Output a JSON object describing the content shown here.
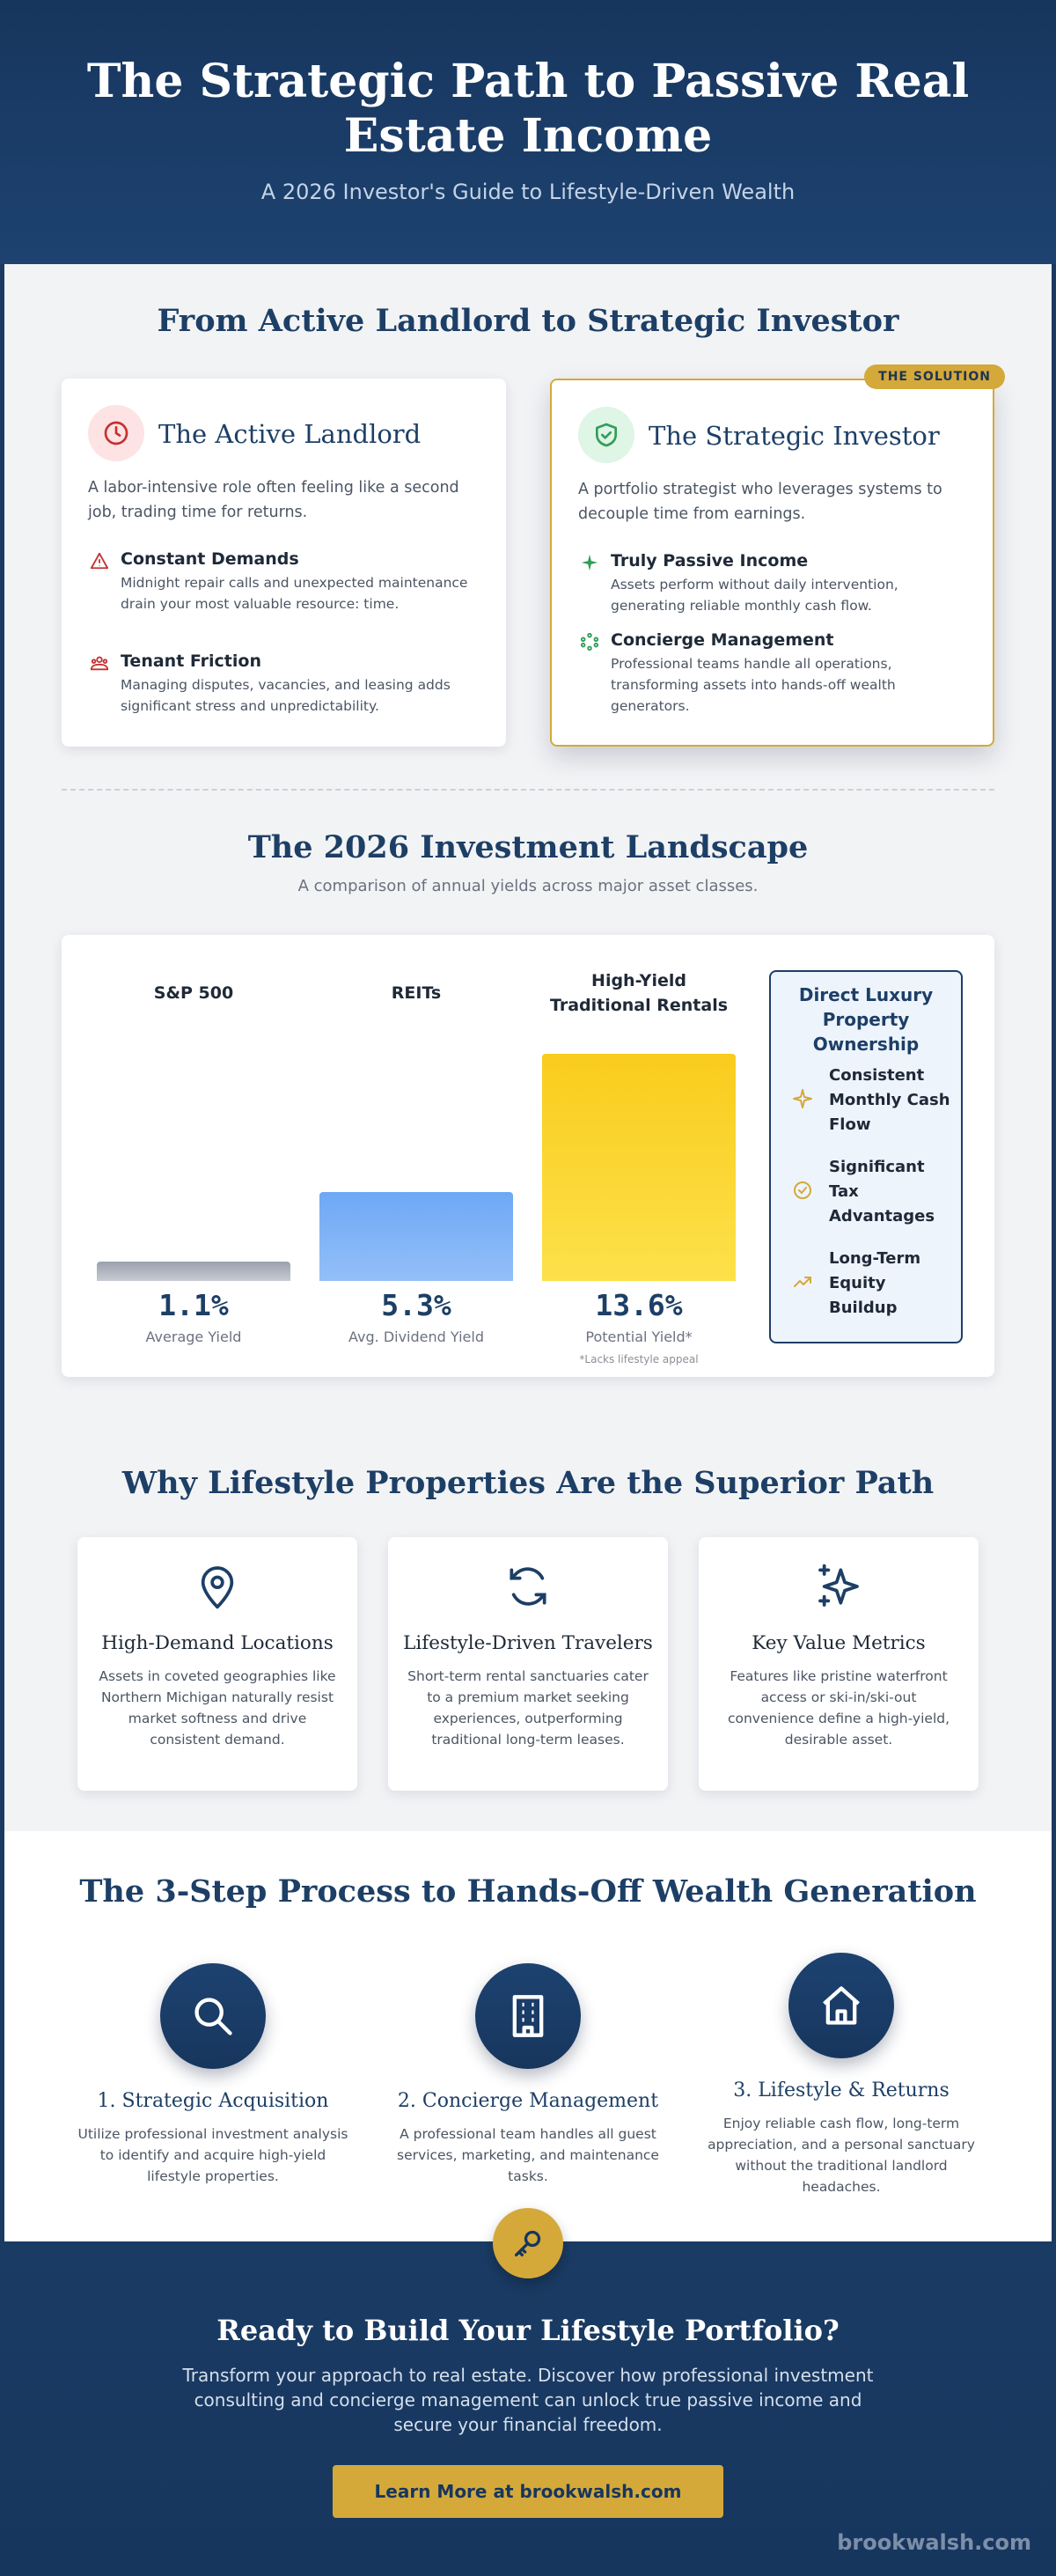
{
  "hero": {
    "title": "The Strategic Path to Passive Real Estate Income",
    "subtitle": "A 2026 Investor's Guide to Lifestyle-Driven Wealth"
  },
  "compare": {
    "title": "From Active Landlord to Strategic Investor",
    "active": {
      "icon": "clock-icon",
      "title": "The Active Landlord",
      "desc": "A labor-intensive role often feeling like a second job, trading time for returns.",
      "items": [
        {
          "icon": "warning-icon",
          "title": "Constant Demands",
          "desc": "Midnight repair calls and unexpected maintenance drain your most valuable resource: time."
        },
        {
          "icon": "group-icon",
          "title": "Tenant Friction",
          "desc": "Managing disputes, vacancies, and leasing adds significant stress and unpredictability."
        }
      ]
    },
    "strategic": {
      "badge": "THE SOLUTION",
      "icon": "shield-check-icon",
      "title": "The Strategic Investor",
      "desc": "A portfolio strategist who leverages systems to decouple time from earnings.",
      "items": [
        {
          "icon": "sparkle-icon",
          "title": "Truly Passive Income",
          "desc": "Assets perform without daily intervention, generating reliable monthly cash flow."
        },
        {
          "icon": "network-icon",
          "title": "Concierge Management",
          "desc": "Professional teams handle all operations, transforming assets into hands-off wealth generators."
        }
      ]
    }
  },
  "landscape": {
    "title": "The 2026 Investment Landscape",
    "subtitle": "A comparison of annual yields across major asset classes."
  },
  "chart_data": {
    "type": "bar",
    "categories": [
      "S&P 500",
      "REITs",
      "High-Yield Traditional Rentals"
    ],
    "values": [
      1.1,
      5.3,
      13.6
    ],
    "value_labels": [
      "1.1%",
      "5.3%",
      "13.6%"
    ],
    "captions": [
      "Average Yield",
      "Avg. Dividend Yield",
      "Potential Yield*"
    ],
    "note": "*Lacks lifestyle appeal",
    "ylim": [
      0,
      13.6
    ],
    "colors": [
      "#9aa1ad",
      "#6ea8f5",
      "#f9cc1d"
    ],
    "title": "",
    "xlabel": "",
    "ylabel": ""
  },
  "luxury": {
    "title": "Direct Luxury Property Ownership",
    "items": [
      {
        "icon": "sparkle-icon",
        "label": "Consistent Monthly Cash Flow"
      },
      {
        "icon": "check-circle-icon",
        "label": "Significant Tax Advantages"
      },
      {
        "icon": "trending-up-icon",
        "label": "Long-Term Equity Buildup"
      }
    ]
  },
  "why": {
    "title": "Why Lifestyle Properties Are the Superior Path",
    "cards": [
      {
        "icon": "map-pin-icon",
        "title": "High-Demand Locations",
        "desc": "Assets in coveted geographies like Northern Michigan naturally resist market softness and drive consistent demand."
      },
      {
        "icon": "refresh-icon",
        "title": "Lifestyle-Driven Travelers",
        "desc": "Short-term rental sanctuaries cater to a premium market seeking experiences, outperforming traditional long-term leases."
      },
      {
        "icon": "sparkles-icon",
        "title": "Key Value Metrics",
        "desc": "Features like pristine waterfront access or ski-in/ski-out convenience define a high-yield, desirable asset."
      }
    ]
  },
  "process": {
    "title": "The 3-Step Process to Hands-Off Wealth Generation",
    "steps": [
      {
        "icon": "search-icon",
        "title": "1. Strategic Acquisition",
        "desc": "Utilize professional investment analysis to identify and acquire high-yield lifestyle properties."
      },
      {
        "icon": "building-icon",
        "title": "2. Concierge Management",
        "desc": "A professional team handles all guest services, marketing, and maintenance tasks."
      },
      {
        "icon": "home-icon",
        "title": "3. Lifestyle & Returns",
        "desc": "Enjoy reliable cash flow, long-term appreciation, and a personal sanctuary without the traditional landlord headaches."
      }
    ]
  },
  "cta": {
    "icon": "key-icon",
    "title": "Ready to Build Your Lifestyle Portfolio?",
    "desc": "Transform your approach to real estate. Discover how professional investment consulting and concierge management can unlock true passive income and secure your financial freedom.",
    "button": "Learn More at brookwalsh.com",
    "brand": "brookwalsh.com"
  },
  "colors": {
    "navy": "#17365e",
    "gold": "#d4a93a",
    "light_bg": "#f2f3f5"
  }
}
